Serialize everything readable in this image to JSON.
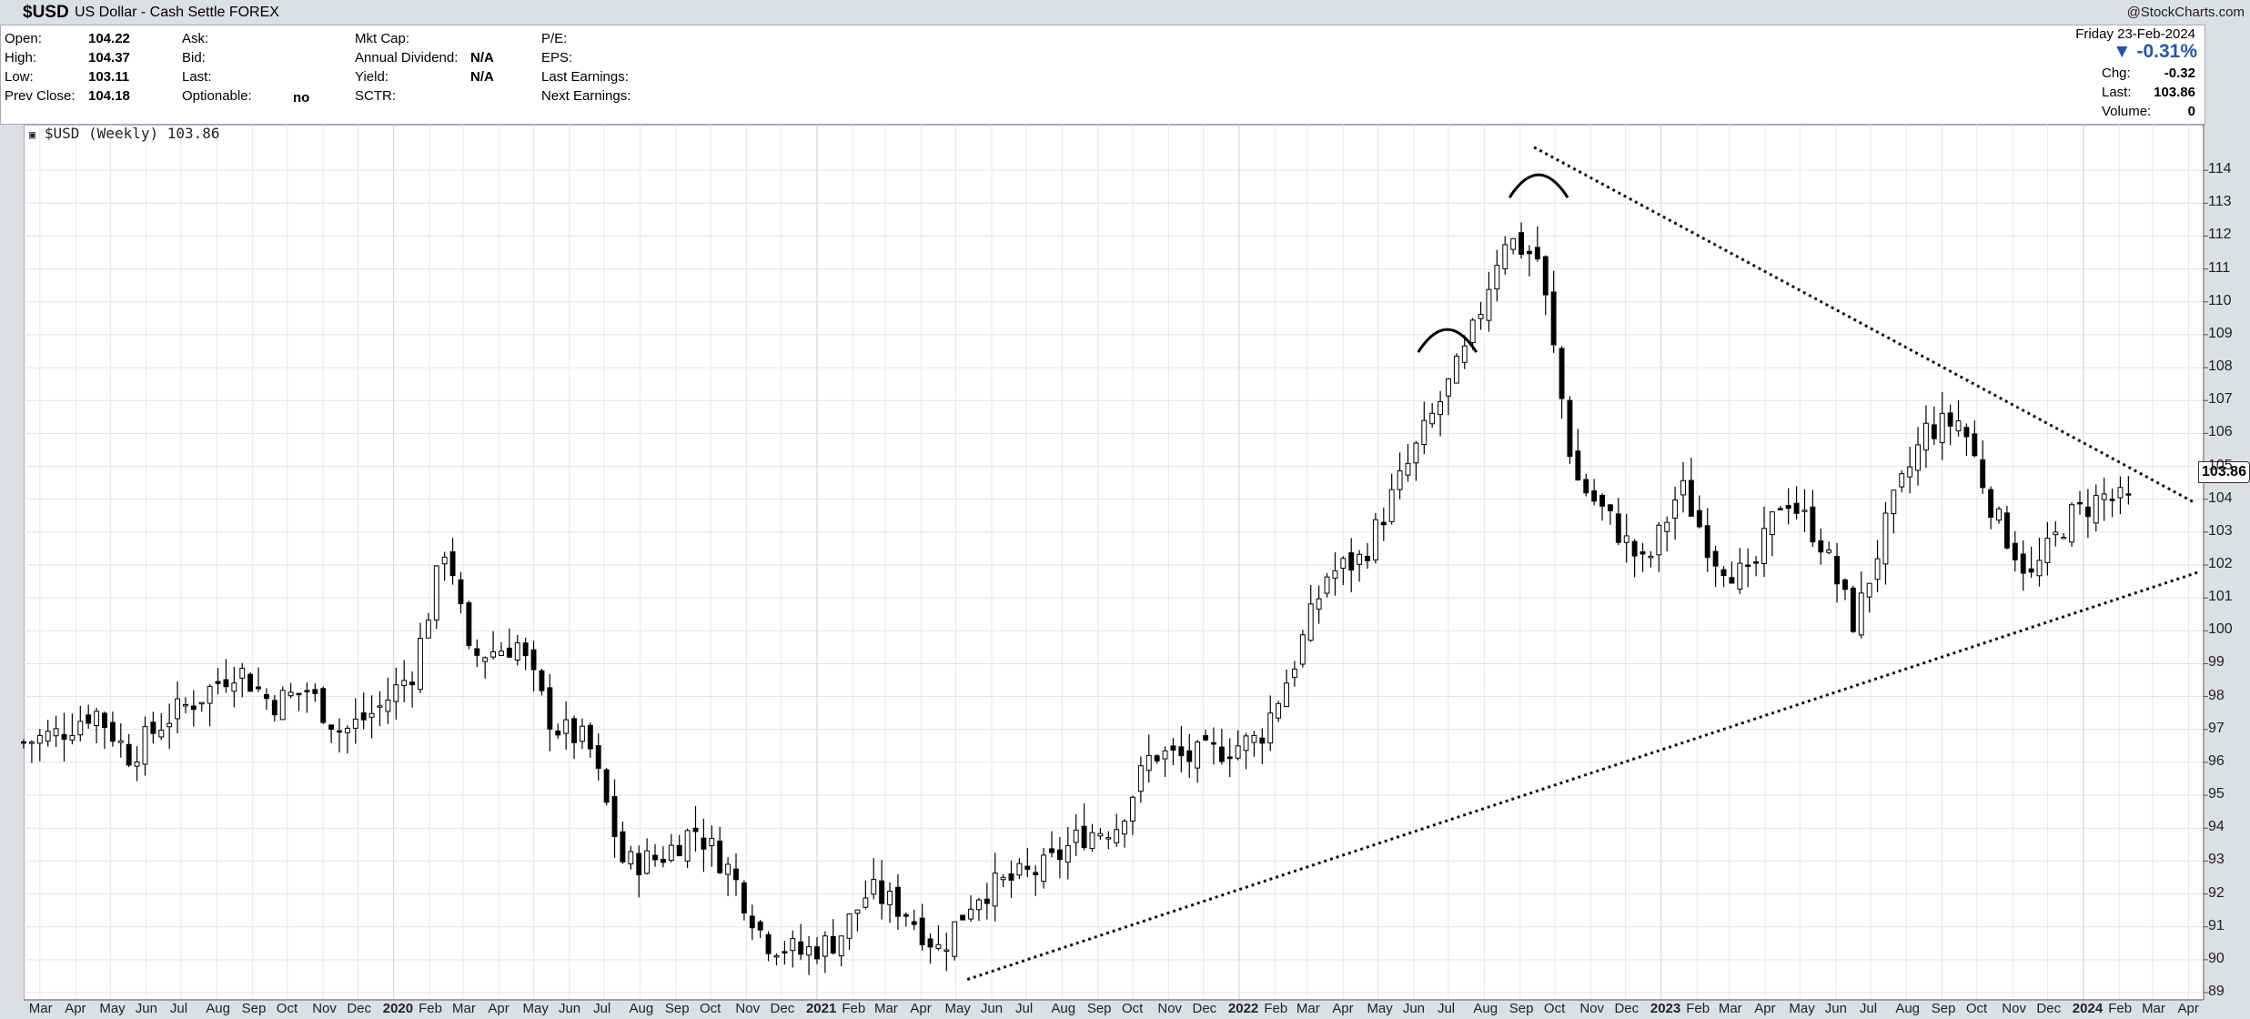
{
  "header": {
    "symbol": "$USD",
    "name": "US Dollar - Cash Settle FOREX",
    "credit": "@StockCharts.com"
  },
  "quote": {
    "open_label": "Open:",
    "open": "104.22",
    "high_label": "High:",
    "high": "104.37",
    "low_label": "Low:",
    "low": "103.11",
    "prev_label": "Prev Close:",
    "prev": "104.18",
    "ask_label": "Ask:",
    "bid_label": "Bid:",
    "last_label": "Last:",
    "optionable_label": "Optionable:",
    "optionable": "no",
    "mktcap_label": "Mkt Cap:",
    "div_label": "Annual Dividend:",
    "div": "N/A",
    "yield_label": "Yield:",
    "yield": "N/A",
    "sctr_label": "SCTR:",
    "pe_label": "P/E:",
    "eps_label": "EPS:",
    "last_earn_label": "Last Earnings:",
    "next_earn_label": "Next Earnings:"
  },
  "right_block": {
    "date": "Friday  23-Feb-2024",
    "pct": "▼ -0.31%",
    "chg_label": "Chg:",
    "chg": "-0.32",
    "last_label": "Last:",
    "last": "103.86",
    "vol_label": "Volume:",
    "vol": "0"
  },
  "legend": "$USD (Weekly) 103.86",
  "last_badge": "103.86",
  "chart_data": {
    "type": "candlestick",
    "period": "Weekly",
    "ylim": [
      89,
      115
    ],
    "yticks": [
      89,
      90,
      91,
      92,
      93,
      94,
      95,
      96,
      97,
      98,
      99,
      100,
      101,
      102,
      103,
      104,
      105,
      106,
      107,
      108,
      109,
      110,
      111,
      112,
      113,
      114
    ],
    "xlim": [
      "2019-03-01",
      "2024-04-28"
    ],
    "x_tick_labels": [
      {
        "date": "2019-03-15",
        "label": "Mar"
      },
      {
        "date": "2019-04-15",
        "label": "Apr"
      },
      {
        "date": "2019-05-15",
        "label": "May"
      },
      {
        "date": "2019-06-15",
        "label": "Jun"
      },
      {
        "date": "2019-07-15",
        "label": "Jul"
      },
      {
        "date": "2019-08-15",
        "label": "Aug"
      },
      {
        "date": "2019-09-15",
        "label": "Sep"
      },
      {
        "date": "2019-10-15",
        "label": "Oct"
      },
      {
        "date": "2019-11-15",
        "label": "Nov"
      },
      {
        "date": "2019-12-15",
        "label": "Dec"
      },
      {
        "date": "2020-01-15",
        "label": "2020",
        "year": true
      },
      {
        "date": "2020-02-15",
        "label": "Feb"
      },
      {
        "date": "2020-03-15",
        "label": "Mar"
      },
      {
        "date": "2020-04-15",
        "label": "Apr"
      },
      {
        "date": "2020-05-15",
        "label": "May"
      },
      {
        "date": "2020-06-15",
        "label": "Jun"
      },
      {
        "date": "2020-07-15",
        "label": "Jul"
      },
      {
        "date": "2020-08-15",
        "label": "Aug"
      },
      {
        "date": "2020-09-15",
        "label": "Sep"
      },
      {
        "date": "2020-10-15",
        "label": "Oct"
      },
      {
        "date": "2020-11-15",
        "label": "Nov"
      },
      {
        "date": "2020-12-15",
        "label": "Dec"
      },
      {
        "date": "2021-01-15",
        "label": "2021",
        "year": true
      },
      {
        "date": "2021-02-15",
        "label": "Feb"
      },
      {
        "date": "2021-03-15",
        "label": "Mar"
      },
      {
        "date": "2021-04-15",
        "label": "Apr"
      },
      {
        "date": "2021-05-15",
        "label": "May"
      },
      {
        "date": "2021-06-15",
        "label": "Jun"
      },
      {
        "date": "2021-07-15",
        "label": "Jul"
      },
      {
        "date": "2021-08-15",
        "label": "Aug"
      },
      {
        "date": "2021-09-15",
        "label": "Sep"
      },
      {
        "date": "2021-10-15",
        "label": "Oct"
      },
      {
        "date": "2021-11-15",
        "label": "Nov"
      },
      {
        "date": "2021-12-15",
        "label": "Dec"
      },
      {
        "date": "2022-01-15",
        "label": "2022",
        "year": true
      },
      {
        "date": "2022-02-15",
        "label": "Feb"
      },
      {
        "date": "2022-03-15",
        "label": "Mar"
      },
      {
        "date": "2022-04-15",
        "label": "Apr"
      },
      {
        "date": "2022-05-15",
        "label": "May"
      },
      {
        "date": "2022-06-15",
        "label": "Jun"
      },
      {
        "date": "2022-07-15",
        "label": "Jul"
      },
      {
        "date": "2022-08-15",
        "label": "Aug"
      },
      {
        "date": "2022-09-15",
        "label": "Sep"
      },
      {
        "date": "2022-10-15",
        "label": "Oct"
      },
      {
        "date": "2022-11-15",
        "label": "Nov"
      },
      {
        "date": "2022-12-15",
        "label": "Dec"
      },
      {
        "date": "2023-01-15",
        "label": "2023",
        "year": true
      },
      {
        "date": "2023-02-15",
        "label": "Feb"
      },
      {
        "date": "2023-03-15",
        "label": "Mar"
      },
      {
        "date": "2023-04-15",
        "label": "Apr"
      },
      {
        "date": "2023-05-15",
        "label": "May"
      },
      {
        "date": "2023-06-15",
        "label": "Jun"
      },
      {
        "date": "2023-07-15",
        "label": "Jul"
      },
      {
        "date": "2023-08-15",
        "label": "Aug"
      },
      {
        "date": "2023-09-15",
        "label": "Sep"
      },
      {
        "date": "2023-10-15",
        "label": "Oct"
      },
      {
        "date": "2023-11-15",
        "label": "Nov"
      },
      {
        "date": "2023-12-15",
        "label": "Dec"
      },
      {
        "date": "2024-01-15",
        "label": "2024",
        "year": true
      },
      {
        "date": "2024-02-15",
        "label": "Feb"
      },
      {
        "date": "2024-03-15",
        "label": "Mar"
      },
      {
        "date": "2024-04-15",
        "label": "Apr"
      }
    ],
    "close_path": [
      [
        "2019-03-01",
        96.6
      ],
      [
        "2019-04-01",
        96.9
      ],
      [
        "2019-05-01",
        97.6
      ],
      [
        "2019-06-01",
        96.2
      ],
      [
        "2019-07-01",
        97.3
      ],
      [
        "2019-08-01",
        98.0
      ],
      [
        "2019-09-01",
        98.9
      ],
      [
        "2019-10-01",
        97.8
      ],
      [
        "2019-11-01",
        98.2
      ],
      [
        "2019-12-01",
        96.9
      ],
      [
        "2020-01-01",
        97.6
      ],
      [
        "2020-02-01",
        98.8
      ],
      [
        "2020-03-01",
        102.8
      ],
      [
        "2020-03-20",
        99.2
      ],
      [
        "2020-05-01",
        99.6
      ],
      [
        "2020-06-01",
        97.1
      ],
      [
        "2020-07-01",
        96.6
      ],
      [
        "2020-08-01",
        92.9
      ],
      [
        "2020-09-01",
        93.1
      ],
      [
        "2020-10-01",
        94.0
      ],
      [
        "2020-11-01",
        92.7
      ],
      [
        "2020-12-01",
        90.6
      ],
      [
        "2021-01-01",
        90.2
      ],
      [
        "2021-02-01",
        90.6
      ],
      [
        "2021-03-01",
        92.1
      ],
      [
        "2021-04-01",
        91.5
      ],
      [
        "2021-05-01",
        90.3
      ],
      [
        "2021-06-01",
        92.0
      ],
      [
        "2021-07-01",
        92.4
      ],
      [
        "2021-08-01",
        92.8
      ],
      [
        "2021-09-01",
        93.8
      ],
      [
        "2021-10-01",
        94.1
      ],
      [
        "2021-11-01",
        96.3
      ],
      [
        "2021-12-01",
        96.1
      ],
      [
        "2022-01-01",
        96.4
      ],
      [
        "2022-02-01",
        96.7
      ],
      [
        "2022-03-01",
        98.8
      ],
      [
        "2022-04-01",
        101.7
      ],
      [
        "2022-05-01",
        102.2
      ],
      [
        "2022-06-01",
        104.4
      ],
      [
        "2022-07-01",
        106.5
      ],
      [
        "2022-08-01",
        108.6
      ],
      [
        "2022-09-01",
        112.0
      ],
      [
        "2022-10-01",
        111.3
      ],
      [
        "2022-11-01",
        104.7
      ],
      [
        "2022-12-01",
        103.4
      ],
      [
        "2023-01-01",
        101.9
      ],
      [
        "2023-02-01",
        104.4
      ],
      [
        "2023-03-01",
        102.3
      ],
      [
        "2023-04-01",
        101.5
      ],
      [
        "2023-05-01",
        104.2
      ],
      [
        "2023-06-01",
        102.8
      ],
      [
        "2023-07-01",
        100.2
      ],
      [
        "2023-08-01",
        103.6
      ],
      [
        "2023-09-01",
        106.1
      ],
      [
        "2023-10-01",
        106.4
      ],
      [
        "2023-11-01",
        103.4
      ],
      [
        "2023-12-01",
        101.6
      ],
      [
        "2024-01-01",
        103.4
      ],
      [
        "2024-02-01",
        104.1
      ],
      [
        "2024-02-23",
        103.86
      ]
    ],
    "annotations": {
      "upper_trendline": [
        [
          "2022-09-27",
          114.7
        ],
        [
          "2024-04-20",
          103.9
        ]
      ],
      "lower_trendline": [
        [
          "2021-05-25",
          89.4
        ],
        [
          "2024-04-25",
          101.8
        ]
      ],
      "arcs": [
        {
          "date": "2022-07-14",
          "level": 109.3
        },
        {
          "date": "2022-10-01",
          "level": 114.0
        }
      ]
    }
  }
}
